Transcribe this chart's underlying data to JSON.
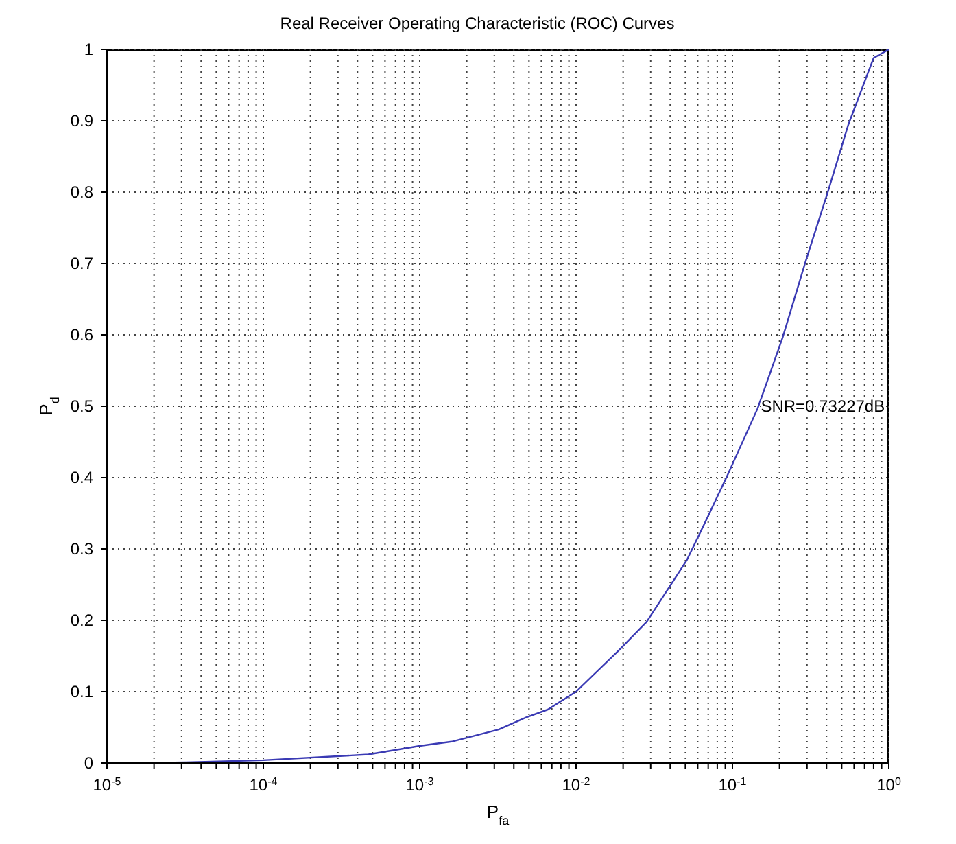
{
  "chart_data": {
    "type": "line",
    "title": "Real Receiver Operating Characteristic (ROC) Curves",
    "xlabel": "P$_{fa}$",
    "ylabel": "P$_{d}$",
    "log": "x",
    "grid": true,
    "marker": "none",
    "line_style": "solid",
    "xlim": [
      1e-05,
      1
    ],
    "ylim": [
      0,
      1
    ],
    "xticks": [
      {
        "value": 1e-05,
        "label": "10$^{-5}$"
      },
      {
        "value": 2e-05,
        "label": null
      },
      {
        "value": 3e-05,
        "label": null
      },
      {
        "value": 4e-05,
        "label": null
      },
      {
        "value": 5e-05,
        "label": null
      },
      {
        "value": 6e-05,
        "label": null
      },
      {
        "value": 7e-05,
        "label": null
      },
      {
        "value": 8e-05,
        "label": null
      },
      {
        "value": 9e-05,
        "label": null
      },
      {
        "value": 0.0001,
        "label": "10$^{-4}$"
      },
      {
        "value": 0.0002,
        "label": null
      },
      {
        "value": 0.0003,
        "label": null
      },
      {
        "value": 0.0004,
        "label": null
      },
      {
        "value": 0.0005,
        "label": null
      },
      {
        "value": 0.0006,
        "label": null
      },
      {
        "value": 0.0007,
        "label": null
      },
      {
        "value": 0.0008,
        "label": null
      },
      {
        "value": 0.0009,
        "label": null
      },
      {
        "value": 0.001,
        "label": "10$^{-3}$"
      },
      {
        "value": 0.002,
        "label": null
      },
      {
        "value": 0.003,
        "label": null
      },
      {
        "value": 0.004,
        "label": null
      },
      {
        "value": 0.005,
        "label": null
      },
      {
        "value": 0.006,
        "label": null
      },
      {
        "value": 0.007,
        "label": null
      },
      {
        "value": 0.008,
        "label": null
      },
      {
        "value": 0.009,
        "label": null
      },
      {
        "value": 0.01,
        "label": "10$^{-2}$"
      },
      {
        "value": 0.02,
        "label": null
      },
      {
        "value": 0.03,
        "label": null
      },
      {
        "value": 0.04,
        "label": null
      },
      {
        "value": 0.05,
        "label": null
      },
      {
        "value": 0.06,
        "label": null
      },
      {
        "value": 0.07,
        "label": null
      },
      {
        "value": 0.08,
        "label": null
      },
      {
        "value": 0.09,
        "label": null
      },
      {
        "value": 0.1,
        "label": "10$^{-1}$"
      },
      {
        "value": 0.2,
        "label": null
      },
      {
        "value": 0.3,
        "label": null
      },
      {
        "value": 0.4,
        "label": null
      },
      {
        "value": 0.5,
        "label": null
      },
      {
        "value": 0.6,
        "label": null
      },
      {
        "value": 0.7,
        "label": null
      },
      {
        "value": 0.8,
        "label": null
      },
      {
        "value": 0.9,
        "label": null
      },
      {
        "value": 1,
        "label": "10$^{0}$"
      }
    ],
    "yticks": [
      0,
      0.1,
      0.2,
      0.3,
      0.4,
      0.5,
      0.6,
      0.7,
      0.8,
      0.9,
      1
    ],
    "annotations": [
      {
        "text": "SNR=0.73227dB",
        "x": 0.143,
        "y": 0.5
      }
    ],
    "series": [
      {
        "color": "#3a3ab4",
        "x": [
          1e-05,
          3.2e-05,
          0.0001,
          0.00047,
          0.001,
          0.0016,
          0.0032,
          0.0048,
          0.0066,
          0.01,
          0.0188,
          0.0283,
          0.0513,
          0.0692,
          0.0933,
          0.145,
          0.21,
          0.294,
          0.41,
          0.552,
          0.8,
          1
        ],
        "values": [
          0,
          0.001,
          0.004,
          0.012,
          0.024,
          0.03,
          0.047,
          0.064,
          0.075,
          0.1,
          0.158,
          0.198,
          0.285,
          0.344,
          0.404,
          0.497,
          0.597,
          0.703,
          0.802,
          0.895,
          0.988,
          1
        ]
      }
    ]
  }
}
